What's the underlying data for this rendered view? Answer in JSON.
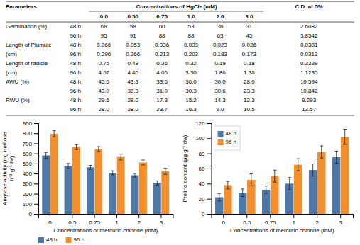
{
  "chart_data": [
    {
      "type": "table",
      "header": [
        "Parameters",
        "Concentrations of HgCl₂ (mM)",
        "C.D. at 5%"
      ],
      "subheader": [
        "0.0",
        "0.50",
        "0.75",
        "1.0",
        "2.0",
        "3.0"
      ],
      "rows": [
        {
          "label": "Germination (%)",
          "time": "48 h",
          "values": [
            "68",
            "58",
            "60",
            "53",
            "36",
            "31",
            "2.6082"
          ]
        },
        {
          "label": null,
          "time": "96 h",
          "values": [
            "95",
            "91",
            "88",
            "88",
            "63",
            "45",
            "3.8542"
          ]
        },
        {
          "label": "Length of Plumule\n(cm)",
          "time": "48 h",
          "values": [
            "0.066",
            "0.053",
            "0.036",
            "0.033",
            "0.023",
            "0.026",
            "0.0381"
          ]
        },
        {
          "label": null,
          "time": "96 h",
          "values": [
            "0.296",
            "0.266",
            "0.213",
            "0.203",
            "0.183",
            "0.173",
            "0.0313"
          ]
        },
        {
          "label": "Length of radicle\n(cm)",
          "time": "48 h",
          "values": [
            "0.75",
            "0.49",
            "0.36",
            "0.32",
            "0.19",
            "0.18",
            "0.3339"
          ]
        },
        {
          "label": null,
          "time": "96 h",
          "values": [
            "4.67",
            "4.40",
            "4.05",
            "3.30",
            "1.86",
            "1.30",
            "1.1235"
          ]
        },
        {
          "label": "AWU (%)",
          "time": "48 h",
          "values": [
            "45.6",
            "43.3",
            "33.6",
            "36.0",
            "30.0",
            "28.0",
            "10.594"
          ]
        },
        {
          "label": null,
          "time": "96 h",
          "values": [
            "43.0",
            "33.3",
            "31.0",
            "30.3",
            "30.6",
            "23.3",
            "10.842"
          ]
        },
        {
          "label": "RWU (%)",
          "time": "48 h",
          "values": [
            "29.6",
            "28.0",
            "17.3",
            "15.2",
            "14.3",
            "12.3",
            "9.293"
          ]
        },
        {
          "label": null,
          "time": "96 h",
          "values": [
            "28.0",
            "28.0",
            "23.7",
            "16.3",
            "9.0",
            "10.5",
            "13.57"
          ]
        }
      ]
    },
    {
      "type": "bar",
      "xlabel": "Concentrations of mercuric chloride (mM)",
      "ylabel": "Amylase activity (mg maltose\nh⁻¹ g⁻¹ fw)",
      "categories": [
        "0",
        "0.5",
        "0.75",
        "1",
        "2",
        "3"
      ],
      "series": [
        {
          "name": "48 h",
          "values": [
            580,
            475,
            462,
            408,
            383,
            308
          ],
          "errors": [
            30,
            25,
            20,
            20,
            18,
            20
          ]
        },
        {
          "name": "96 h",
          "values": [
            795,
            662,
            643,
            565,
            510,
            422
          ],
          "errors": [
            30,
            25,
            25,
            30,
            25,
            30
          ]
        }
      ],
      "ylim": [
        0,
        900
      ],
      "yticks": [
        0,
        100,
        200,
        300,
        400,
        500,
        600,
        700,
        800,
        900
      ],
      "legend": "lower left"
    },
    {
      "type": "bar",
      "xlabel": "Concentrations of mercuric chloride (mM)",
      "ylabel": "Proline content (µg g⁻¹ dw)",
      "categories": [
        "0",
        "0.5",
        "0.75",
        "1",
        "2",
        "3"
      ],
      "series": [
        {
          "name": "48 h",
          "values": [
            22,
            28,
            32,
            40,
            58,
            75
          ],
          "errors": [
            5,
            5,
            5,
            8,
            8,
            8
          ]
        },
        {
          "name": "96 h",
          "values": [
            38,
            45,
            50,
            65,
            82,
            102
          ],
          "errors": [
            5,
            8,
            8,
            8,
            8,
            10
          ]
        }
      ],
      "ylim": [
        0,
        120
      ],
      "yticks": [
        0,
        20,
        40,
        60,
        80,
        100,
        120
      ],
      "legend": "upper left"
    }
  ]
}
